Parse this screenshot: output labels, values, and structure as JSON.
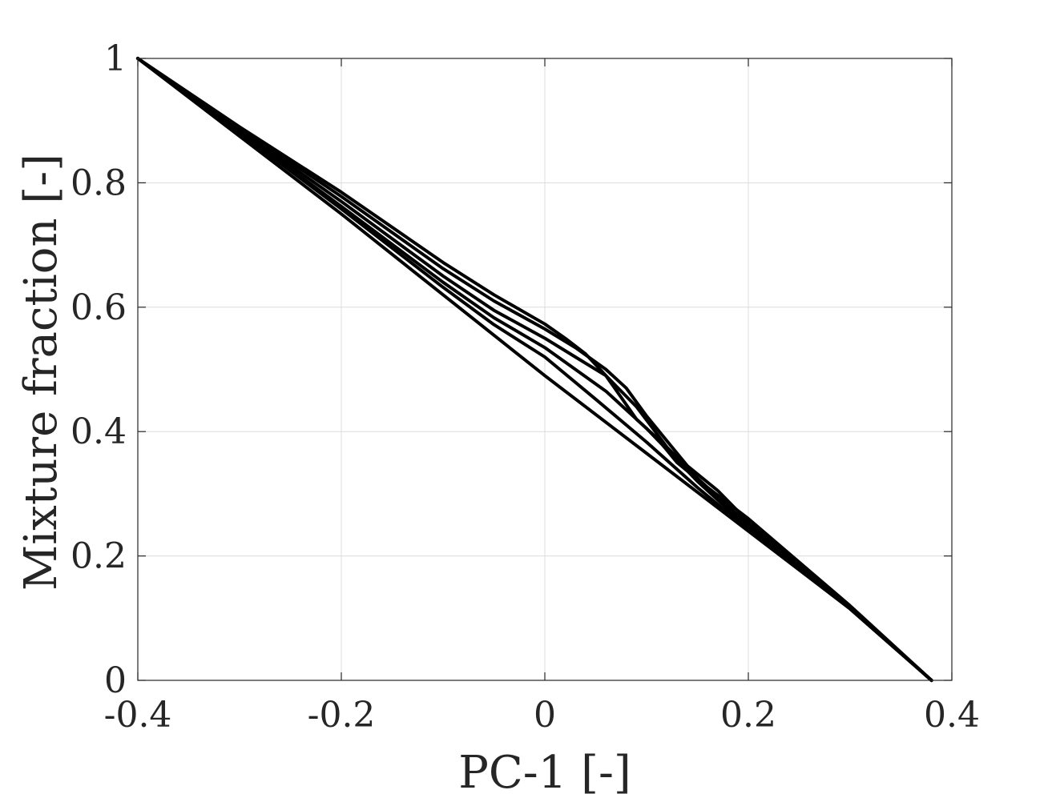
{
  "chart_data": {
    "type": "line",
    "title": "",
    "xlabel": "PC-1 [-]",
    "ylabel": "Mixture fraction [-]",
    "xlim": [
      -0.4,
      0.4
    ],
    "ylim": [
      0,
      1
    ],
    "xticks": [
      -0.4,
      -0.2,
      0,
      0.2,
      0.4
    ],
    "xtick_labels": [
      "-0.4",
      "-0.2",
      "0",
      "0.2",
      "0.4"
    ],
    "yticks": [
      0,
      0.2,
      0.4,
      0.6,
      0.8,
      1
    ],
    "ytick_labels": [
      "0",
      "0.2",
      "0.4",
      "0.6",
      "0.8",
      "1"
    ],
    "grid": true,
    "line_color": "#000000",
    "series": [
      {
        "x": [
          -0.4,
          -0.3,
          -0.2,
          -0.1,
          0.0,
          0.1,
          0.2,
          0.3,
          0.38
        ],
        "y": [
          1.0,
          0.875,
          0.75,
          0.62,
          0.49,
          0.365,
          0.24,
          0.115,
          0.0
        ]
      },
      {
        "x": [
          -0.4,
          -0.3,
          -0.2,
          -0.1,
          -0.05,
          0.0,
          0.05,
          0.1,
          0.15,
          0.2,
          0.3,
          0.38
        ],
        "y": [
          1.0,
          0.88,
          0.758,
          0.632,
          0.572,
          0.52,
          0.452,
          0.383,
          0.31,
          0.242,
          0.115,
          0.0
        ]
      },
      {
        "x": [
          -0.4,
          -0.3,
          -0.2,
          -0.1,
          -0.05,
          0.0,
          0.03,
          0.06,
          0.1,
          0.15,
          0.2,
          0.3,
          0.38
        ],
        "y": [
          1.0,
          0.882,
          0.762,
          0.64,
          0.583,
          0.535,
          0.5,
          0.465,
          0.405,
          0.32,
          0.245,
          0.115,
          0.0
        ]
      },
      {
        "x": [
          -0.4,
          -0.3,
          -0.2,
          -0.1,
          -0.05,
          0.0,
          0.03,
          0.06,
          0.09,
          0.12,
          0.15,
          0.2,
          0.3,
          0.38
        ],
        "y": [
          1.0,
          0.885,
          0.77,
          0.65,
          0.595,
          0.55,
          0.52,
          0.49,
          0.44,
          0.375,
          0.325,
          0.25,
          0.115,
          0.0
        ]
      },
      {
        "x": [
          -0.4,
          -0.3,
          -0.2,
          -0.1,
          -0.05,
          0.0,
          0.03,
          0.06,
          0.08,
          0.1,
          0.12,
          0.14,
          0.17,
          0.2,
          0.3,
          0.38
        ],
        "y": [
          1.0,
          0.888,
          0.778,
          0.662,
          0.61,
          0.565,
          0.535,
          0.5,
          0.47,
          0.425,
          0.385,
          0.345,
          0.305,
          0.255,
          0.118,
          0.0
        ]
      },
      {
        "x": [
          -0.4,
          -0.3,
          -0.2,
          -0.1,
          -0.05,
          0.0,
          0.02,
          0.04,
          0.06,
          0.075,
          0.09,
          0.11,
          0.13,
          0.16,
          0.2,
          0.25,
          0.3,
          0.38
        ],
        "y": [
          1.0,
          0.89,
          0.785,
          0.672,
          0.62,
          0.573,
          0.55,
          0.525,
          0.49,
          0.455,
          0.42,
          0.39,
          0.35,
          0.31,
          0.26,
          0.19,
          0.12,
          0.0
        ]
      }
    ]
  }
}
